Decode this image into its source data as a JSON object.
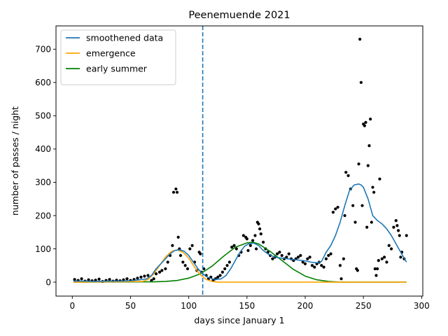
{
  "chart_data": {
    "type": "line",
    "title": "Peenemuende 2021",
    "xlabel": "days since January 1",
    "ylabel": "number of passes / night",
    "xlim": [
      -14,
      301
    ],
    "ylim": [
      -42,
      770
    ],
    "xticks": [
      0,
      50,
      100,
      150,
      200,
      250,
      300
    ],
    "yticks": [
      0,
      100,
      200,
      300,
      400,
      500,
      600,
      700
    ],
    "legend_position": "top-left",
    "vline": {
      "x": 112,
      "color": "#1f77b4",
      "style": "dashed"
    },
    "series": [
      {
        "name": "smoothened data",
        "color": "#1f77b4",
        "kind": "line",
        "x": [
          1,
          10,
          20,
          30,
          40,
          50,
          55,
          60,
          64,
          68,
          72,
          76,
          80,
          84,
          88,
          92,
          96,
          100,
          104,
          108,
          112,
          116,
          120,
          124,
          128,
          132,
          136,
          140,
          144,
          148,
          152,
          156,
          160,
          164,
          168,
          172,
          176,
          180,
          185,
          190,
          195,
          200,
          205,
          210,
          214,
          218,
          222,
          226,
          230,
          234,
          238,
          242,
          246,
          248,
          250,
          254,
          258,
          262,
          266,
          270,
          274,
          278,
          282,
          287
        ],
        "y": [
          3,
          3,
          2,
          3,
          3,
          4,
          6,
          8,
          10,
          20,
          40,
          55,
          70,
          85,
          95,
          97,
          93,
          80,
          60,
          40,
          25,
          15,
          10,
          8,
          10,
          20,
          40,
          65,
          90,
          108,
          116,
          117,
          110,
          95,
          85,
          78,
          74,
          72,
          70,
          68,
          66,
          64,
          60,
          58,
          62,
          90,
          110,
          140,
          180,
          230,
          275,
          292,
          295,
          292,
          285,
          250,
          200,
          185,
          175,
          160,
          140,
          115,
          90,
          60
        ]
      },
      {
        "name": "emergence",
        "color": "#ffa500",
        "kind": "line",
        "x": [
          1,
          60,
          65,
          70,
          75,
          80,
          85,
          90,
          95,
          100,
          105,
          110,
          115,
          120,
          125,
          130,
          287
        ],
        "y": [
          0,
          2,
          8,
          25,
          50,
          75,
          92,
          97,
          90,
          72,
          45,
          22,
          8,
          2,
          0,
          0,
          0
        ]
      },
      {
        "name": "early summer",
        "color": "#008000",
        "kind": "line",
        "x": [
          1,
          70,
          80,
          90,
          100,
          110,
          120,
          130,
          140,
          150,
          155,
          160,
          170,
          180,
          190,
          200,
          210,
          220,
          230,
          287
        ],
        "y": [
          0,
          1,
          2,
          5,
          12,
          25,
          48,
          78,
          105,
          118,
          120,
          115,
          92,
          65,
          38,
          18,
          7,
          2,
          0,
          0
        ]
      },
      {
        "name": "",
        "color": "#000000",
        "kind": "scatter",
        "x": [
          2,
          5,
          8,
          11,
          14,
          17,
          20,
          23,
          26,
          29,
          32,
          35,
          38,
          41,
          44,
          47,
          50,
          53,
          56,
          59,
          62,
          65,
          68,
          70,
          72,
          75,
          77,
          80,
          82,
          84,
          86,
          87,
          89,
          90,
          91,
          92,
          93,
          95,
          97,
          99,
          101,
          103,
          105,
          107,
          109,
          110,
          111,
          113,
          115,
          117,
          119,
          121,
          123,
          125,
          127,
          129,
          131,
          133,
          135,
          137,
          139,
          141,
          143,
          145,
          147,
          149,
          150,
          151,
          153,
          155,
          157,
          158,
          159,
          160,
          161,
          162,
          164,
          166,
          168,
          170,
          172,
          174,
          176,
          178,
          180,
          182,
          184,
          186,
          188,
          190,
          192,
          194,
          196,
          198,
          200,
          202,
          204,
          206,
          208,
          210,
          212,
          214,
          216,
          218,
          220,
          222,
          224,
          226,
          228,
          230,
          231,
          233,
          234,
          235,
          237,
          239,
          241,
          243,
          244,
          245,
          246,
          247,
          248,
          249,
          250,
          251,
          252,
          253,
          254,
          255,
          256,
          257,
          258,
          259,
          260,
          261,
          262,
          263,
          264,
          266,
          268,
          270,
          272,
          274,
          276,
          278,
          279,
          280,
          281,
          282,
          283,
          285,
          287
        ],
        "y": [
          8,
          5,
          10,
          3,
          7,
          4,
          6,
          9,
          2,
          5,
          8,
          3,
          6,
          4,
          7,
          10,
          5,
          8,
          12,
          15,
          18,
          20,
          5,
          10,
          25,
          30,
          35,
          40,
          60,
          80,
          110,
          270,
          280,
          270,
          135,
          100,
          80,
          60,
          50,
          40,
          100,
          110,
          60,
          35,
          90,
          85,
          30,
          40,
          20,
          10,
          15,
          5,
          10,
          15,
          20,
          30,
          40,
          50,
          60,
          105,
          110,
          100,
          80,
          90,
          140,
          135,
          130,
          95,
          110,
          125,
          140,
          100,
          180,
          175,
          160,
          145,
          120,
          100,
          90,
          80,
          70,
          75,
          85,
          90,
          80,
          70,
          75,
          85,
          70,
          65,
          70,
          75,
          80,
          60,
          55,
          70,
          75,
          50,
          45,
          55,
          60,
          50,
          45,
          70,
          80,
          85,
          210,
          220,
          225,
          50,
          10,
          70,
          200,
          330,
          320,
          280,
          230,
          180,
          40,
          35,
          355,
          730,
          600,
          230,
          475,
          470,
          480,
          165,
          350,
          410,
          490,
          180,
          285,
          270,
          40,
          20,
          40,
          65,
          310,
          70,
          75,
          60,
          110,
          100,
          165,
          185,
          170,
          155,
          140,
          75,
          90,
          70,
          140
        ]
      }
    ]
  }
}
